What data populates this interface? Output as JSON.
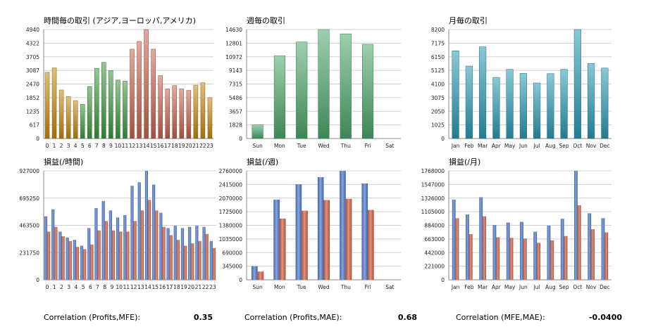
{
  "colors": {
    "hour_asia": "#c78a12",
    "hour_europe": "#3f9a3f",
    "hour_america": "#c8654e",
    "week": "#4ea86b",
    "month": "#2b9bb5",
    "profit_blue": "#4a74c4",
    "profit_red": "#cf5a3c",
    "grid": "#cfcfcf",
    "axis": "#888888"
  },
  "chart_data": [
    {
      "id": "trades_hour",
      "type": "bar",
      "title": "時間毎の取引 (アジア,ヨーロッパ,アメリカ)",
      "categories": [
        "0",
        "1",
        "2",
        "3",
        "4",
        "5",
        "6",
        "7",
        "8",
        "9",
        "10",
        "11",
        "12",
        "13",
        "14",
        "15",
        "16",
        "17",
        "18",
        "19",
        "20",
        "21",
        "22",
        "23"
      ],
      "values": [
        3000,
        3200,
        2200,
        1900,
        1720,
        1550,
        2350,
        3180,
        3450,
        3080,
        2650,
        2600,
        4050,
        4400,
        4940,
        4050,
        2850,
        2250,
        2400,
        2250,
        2180,
        2420,
        2530,
        1850
      ],
      "color_groups": [
        "asia",
        "asia",
        "asia",
        "asia",
        "asia",
        "europe",
        "europe",
        "europe",
        "europe",
        "europe",
        "europe",
        "europe",
        "america",
        "america",
        "america",
        "america",
        "america",
        "america",
        "america",
        "america",
        "america",
        "asia",
        "asia",
        "asia"
      ],
      "yticks": [
        "0",
        "617",
        "1235",
        "1852",
        "2470",
        "3087",
        "3705",
        "4322",
        "4940"
      ],
      "ylim": [
        0,
        4940
      ]
    },
    {
      "id": "trades_week",
      "type": "bar",
      "title": "週毎の取引",
      "categories": [
        "Sun",
        "Mon",
        "Tue",
        "Wed",
        "Thu",
        "Fri",
        "Sat"
      ],
      "values": [
        1828,
        11100,
        12950,
        14630,
        14050,
        12650,
        0
      ],
      "yticks": [
        "0",
        "1828",
        "3657",
        "5486",
        "7315",
        "9143",
        "10972",
        "12801",
        "14630"
      ],
      "ylim": [
        0,
        14630
      ]
    },
    {
      "id": "trades_month",
      "type": "bar",
      "title": "月毎の取引",
      "categories": [
        "Jan",
        "Feb",
        "Mar",
        "Apr",
        "May",
        "Jun",
        "Jul",
        "Aug",
        "Sep",
        "Oct",
        "Nov",
        "Dec"
      ],
      "values": [
        6600,
        5450,
        6900,
        4600,
        5200,
        4900,
        4180,
        4880,
        5200,
        8200,
        5650,
        5300
      ],
      "yticks": [
        "0",
        "1025",
        "2050",
        "3075",
        "4100",
        "5125",
        "6150",
        "7175",
        "8200"
      ],
      "ylim": [
        0,
        8200
      ]
    },
    {
      "id": "profit_hour",
      "type": "bar",
      "title": "損益(/時間)",
      "categories": [
        "0",
        "1",
        "2",
        "3",
        "4",
        "5",
        "6",
        "7",
        "8",
        "9",
        "10",
        "11",
        "12",
        "13",
        "14",
        "15",
        "16",
        "17",
        "18",
        "19",
        "20",
        "21",
        "22",
        "23"
      ],
      "series": [
        {
          "values": [
            540000,
            600000,
            410000,
            360000,
            340000,
            290000,
            440000,
            610000,
            670000,
            590000,
            530000,
            550000,
            800000,
            830000,
            927000,
            810000,
            570000,
            440000,
            460000,
            440000,
            450000,
            460000,
            450000,
            330000
          ]
        },
        {
          "values": [
            410000,
            450000,
            370000,
            330000,
            280000,
            260000,
            300000,
            420000,
            500000,
            420000,
            410000,
            410000,
            500000,
            590000,
            680000,
            590000,
            450000,
            380000,
            340000,
            290000,
            310000,
            330000,
            390000,
            270000
          ]
        }
      ],
      "yticks": [
        "0",
        "231750",
        "463500",
        "695250",
        "927000"
      ],
      "ylim": [
        0,
        927000
      ]
    },
    {
      "id": "profit_week",
      "type": "bar",
      "title": "損益(/週)",
      "categories": [
        "Sun",
        "Mon",
        "Tue",
        "Wed",
        "Thu",
        "Fri",
        "Sat"
      ],
      "series": [
        {
          "values": [
            345000,
            2030000,
            2420000,
            2600000,
            2760000,
            2440000,
            0
          ]
        },
        {
          "values": [
            210000,
            1550000,
            1750000,
            2020000,
            2050000,
            1770000,
            0
          ]
        }
      ],
      "yticks": [
        "0",
        "345000",
        "690000",
        "1035000",
        "1380000",
        "1725000",
        "2070000",
        "2415000",
        "2760000"
      ],
      "ylim": [
        0,
        2760000
      ]
    },
    {
      "id": "profit_month",
      "type": "bar",
      "title": "損益(/月)",
      "categories": [
        "Jan",
        "Feb",
        "Mar",
        "Apr",
        "May",
        "Jun",
        "Jul",
        "Aug",
        "Sep",
        "Oct",
        "Nov",
        "Dec"
      ],
      "series": [
        {
          "values": [
            1300000,
            1060000,
            1340000,
            890000,
            930000,
            940000,
            780000,
            880000,
            990000,
            1768000,
            1080000,
            1000000
          ]
        },
        {
          "values": [
            1000000,
            740000,
            1030000,
            690000,
            680000,
            670000,
            600000,
            640000,
            710000,
            1210000,
            820000,
            770000
          ]
        }
      ],
      "yticks": [
        "0",
        "221000",
        "442000",
        "663000",
        "884000",
        "1105000",
        "1326000",
        "1547000",
        "1768000"
      ],
      "ylim": [
        0,
        1768000
      ]
    }
  ],
  "correlations": [
    {
      "label": "Correlation (Profits,MFE):",
      "value": "0.35"
    },
    {
      "label": "Correlation (Profits,MAE):",
      "value": "0.68"
    },
    {
      "label": "Correlation (MFE,MAE):",
      "value": "-0.0400"
    }
  ]
}
